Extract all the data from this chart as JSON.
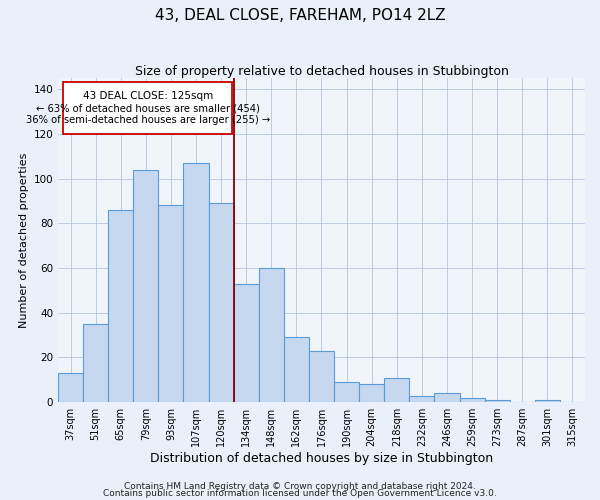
{
  "title": "43, DEAL CLOSE, FAREHAM, PO14 2LZ",
  "subtitle": "Size of property relative to detached houses in Stubbington",
  "xlabel": "Distribution of detached houses by size in Stubbington",
  "ylabel": "Number of detached properties",
  "bar_labels": [
    "37sqm",
    "51sqm",
    "65sqm",
    "79sqm",
    "93sqm",
    "107sqm",
    "120sqm",
    "134sqm",
    "148sqm",
    "162sqm",
    "176sqm",
    "190sqm",
    "204sqm",
    "218sqm",
    "232sqm",
    "246sqm",
    "259sqm",
    "273sqm",
    "287sqm",
    "301sqm",
    "315sqm"
  ],
  "bar_values": [
    13,
    35,
    86,
    104,
    88,
    107,
    89,
    53,
    60,
    29,
    23,
    9,
    8,
    11,
    3,
    4,
    2,
    1,
    0,
    1,
    0
  ],
  "bar_color": "#c5d8f0",
  "bar_edge_color": "#5b9bd5",
  "vertical_line_x": 6.5,
  "vertical_line_color": "#8b0000",
  "ann_line1": "43 DEAL CLOSE: 125sqm",
  "ann_line2": "← 63% of detached houses are smaller (454)",
  "ann_line3": "36% of semi-detached houses are larger (255) →",
  "ylim": [
    0,
    145
  ],
  "yticks": [
    0,
    20,
    40,
    60,
    80,
    100,
    120,
    140
  ],
  "footnote1": "Contains HM Land Registry data © Crown copyright and database right 2024.",
  "footnote2": "Contains public sector information licensed under the Open Government Licence v3.0.",
  "bg_color": "#eaf0fa",
  "plot_bg_color": "#f0f5fc",
  "title_fontsize": 11,
  "subtitle_fontsize": 9,
  "xlabel_fontsize": 9,
  "ylabel_fontsize": 8,
  "tick_fontsize": 7,
  "footnote_fontsize": 6.5,
  "ann_fontsize": 7.5
}
